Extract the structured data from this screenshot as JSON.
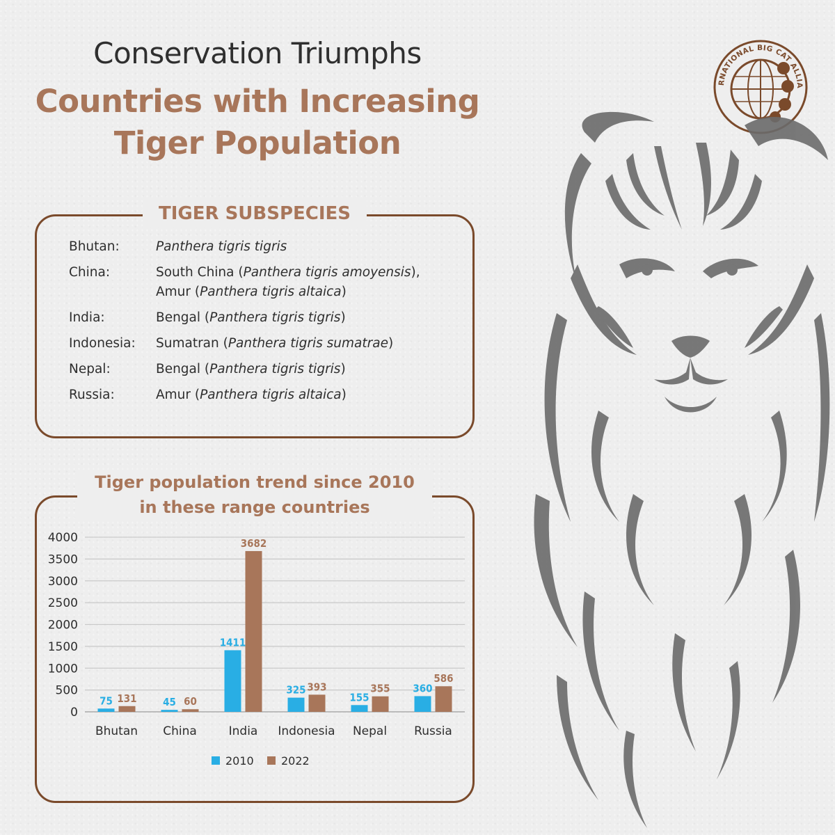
{
  "header": {
    "line1": "Conservation Triumphs",
    "line2": "Countries with Increasing",
    "line3": "Tiger Population"
  },
  "logo": {
    "text": "INTERNATIONAL BIG CAT ALLIANCE",
    "icon": "globe-with-big-cats-emblem"
  },
  "subspecies": {
    "heading": "TIGER SUBSPECIES",
    "rows": [
      {
        "country": "Bhutan:",
        "lines": [
          {
            "pre": "",
            "sci": "Panthera tigris tigris",
            "post": ""
          }
        ]
      },
      {
        "country": "China:",
        "lines": [
          {
            "pre": "South China (",
            "sci": "Panthera tigris amoyensis",
            "post": "),"
          },
          {
            "pre": "Amur (",
            "sci": "Panthera tigris altaica",
            "post": ")"
          }
        ]
      },
      {
        "country": "India:",
        "lines": [
          {
            "pre": "Bengal (",
            "sci": "Panthera tigris tigris",
            "post": ")"
          }
        ]
      },
      {
        "country": "Indonesia:",
        "lines": [
          {
            "pre": "Sumatran (",
            "sci": "Panthera tigris sumatrae",
            "post": ")"
          }
        ]
      },
      {
        "country": "Nepal:",
        "lines": [
          {
            "pre": "Bengal (",
            "sci": "Panthera tigris tigris",
            "post": ")"
          }
        ]
      },
      {
        "country": "Russia:",
        "lines": [
          {
            "pre": "Amur (",
            "sci": "Panthera tigris altaica",
            "post": ")"
          }
        ]
      }
    ]
  },
  "chart_box": {
    "heading_line1": "Tiger population trend since 2010",
    "heading_line2": "in these range countries"
  },
  "chart_data": {
    "type": "bar",
    "categories": [
      "Bhutan",
      "China",
      "India",
      "Indonesia",
      "Nepal",
      "Russia"
    ],
    "series": [
      {
        "name": "2010",
        "values": [
          75,
          45,
          1411,
          325,
          155,
          360
        ],
        "color": "#29aee4"
      },
      {
        "name": "2022",
        "values": [
          131,
          60,
          3682,
          393,
          355,
          586
        ],
        "color": "#a8765a"
      }
    ],
    "ylim": [
      0,
      4000
    ],
    "yticks": [
      0,
      500,
      1000,
      1500,
      2000,
      2500,
      3000,
      3500,
      4000
    ],
    "grid": true,
    "legend_position": "bottom",
    "title": "",
    "xlabel": "",
    "ylabel": ""
  },
  "colors": {
    "accent_brown": "#a8765a",
    "border_brown": "#7a4a2b",
    "series_blue": "#29aee4",
    "tiger_gray": "#666666"
  }
}
